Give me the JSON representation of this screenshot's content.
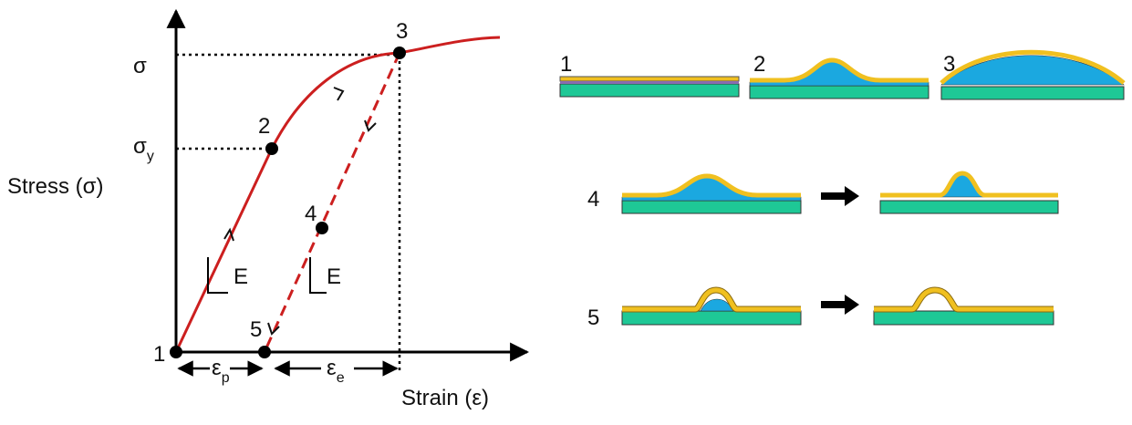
{
  "graph": {
    "y_axis_label": "Stress (σ)",
    "x_axis_label": "Strain (ε)",
    "y_marks": [
      {
        "symbol": "σ"
      },
      {
        "symbol": "σ",
        "subscript": "y"
      }
    ],
    "x_spans": [
      {
        "symbol": "ε",
        "subscript": "p"
      },
      {
        "symbol": "ε",
        "subscript": "e"
      }
    ],
    "slope_labels": [
      "E",
      "E"
    ],
    "points": [
      "1",
      "2",
      "3",
      "4",
      "5"
    ]
  },
  "panels": [
    {
      "label": "1"
    },
    {
      "label": "2"
    },
    {
      "label": "3"
    },
    {
      "label": "4"
    },
    {
      "label": "5"
    }
  ]
}
